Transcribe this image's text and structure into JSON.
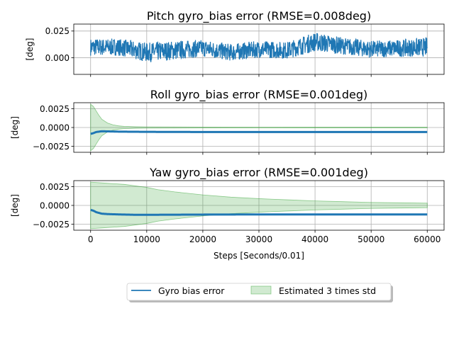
{
  "chart_data": [
    {
      "type": "line",
      "title": "Pitch gyro_bias error (RMSE=0.008deg)",
      "xlabel": "",
      "ylabel": "[deg]",
      "xlim": [
        -3000,
        63000
      ],
      "ylim": [
        -0.0155,
        0.0315
      ],
      "xticks": [
        0,
        10000,
        20000,
        30000,
        40000,
        50000,
        60000
      ],
      "yticks": [
        0.0,
        0.025
      ],
      "ytick_labels": [
        "0.000",
        "0.025"
      ],
      "grid": true,
      "series": [
        {
          "name": "Gyro bias error",
          "color": "#1f77b4",
          "style": "noisy band",
          "x": [
            0,
            5000,
            10000,
            15000,
            20000,
            25000,
            30000,
            35000,
            40000,
            45000,
            50000,
            55000,
            60000
          ],
          "mean": [
            0.01,
            0.01,
            0.005,
            0.007,
            0.009,
            0.005,
            0.008,
            0.007,
            0.015,
            0.011,
            0.008,
            0.009,
            0.01
          ],
          "spread": [
            0.008,
            0.008,
            0.009,
            0.009,
            0.008,
            0.008,
            0.008,
            0.008,
            0.009,
            0.008,
            0.008,
            0.008,
            0.009
          ]
        }
      ],
      "fill": null
    },
    {
      "type": "line",
      "title": "Roll gyro_bias error (RMSE=0.001deg)",
      "xlabel": "",
      "ylabel": "[deg]",
      "xlim": [
        -3000,
        63000
      ],
      "ylim": [
        -0.0033,
        0.0033
      ],
      "xticks": [
        0,
        10000,
        20000,
        30000,
        40000,
        50000,
        60000
      ],
      "yticks": [
        -0.0025,
        0.0,
        0.0025
      ],
      "ytick_labels": [
        "−0.0025",
        "0.0000",
        "0.0025"
      ],
      "grid": true,
      "series": [
        {
          "name": "Gyro bias error",
          "color": "#1f77b4",
          "x": [
            0,
            500,
            1000,
            2000,
            3000,
            5000,
            10000,
            20000,
            30000,
            40000,
            50000,
            60000
          ],
          "y": [
            -0.00085,
            -0.00075,
            -0.0006,
            -0.0005,
            -0.00052,
            -0.00055,
            -0.00058,
            -0.0006,
            -0.0006,
            -0.0006,
            -0.0006,
            -0.0006
          ]
        }
      ],
      "fill": {
        "name": "Estimated 3 times std",
        "color": "#2ca02c",
        "x": [
          0,
          500,
          1000,
          1500,
          2000,
          3000,
          4000,
          5000,
          6000,
          8000,
          10000,
          20000,
          30000,
          40000,
          50000,
          60000
        ],
        "upper": [
          0.0031,
          0.0028,
          0.0022,
          0.0016,
          0.0011,
          0.0006,
          0.00035,
          0.00022,
          0.00015,
          0.0001,
          8e-05,
          6e-05,
          5e-05,
          4e-05,
          4e-05,
          4e-05
        ],
        "lower": [
          -0.0031,
          -0.0028,
          -0.0022,
          -0.0016,
          -0.0011,
          -0.0006,
          -0.00035,
          -0.00022,
          -0.00015,
          -0.0001,
          -8e-05,
          -6e-05,
          -5e-05,
          -4e-05,
          -4e-05,
          -4e-05
        ]
      }
    },
    {
      "type": "line",
      "title": "Yaw gyro_bias error (RMSE=0.001deg)",
      "xlabel": "Steps [Seconds/0.01]",
      "ylabel": "[deg]",
      "xlim": [
        -3000,
        63000
      ],
      "ylim": [
        -0.0033,
        0.0033
      ],
      "xticks": [
        0,
        10000,
        20000,
        30000,
        40000,
        50000,
        60000
      ],
      "yticks": [
        -0.0025,
        0.0,
        0.0025
      ],
      "ytick_labels": [
        "−0.0025",
        "0.0000",
        "0.0025"
      ],
      "xtick_labels": [
        "0",
        "10000",
        "20000",
        "30000",
        "40000",
        "50000",
        "60000"
      ],
      "grid": true,
      "series": [
        {
          "name": "Gyro bias error",
          "color": "#1f77b4",
          "x": [
            0,
            500,
            1000,
            2000,
            3000,
            5000,
            8000,
            10000,
            20000,
            30000,
            40000,
            50000,
            60000
          ],
          "y": [
            -0.0006,
            -0.0007,
            -0.0009,
            -0.0011,
            -0.00115,
            -0.0012,
            -0.00125,
            -0.00125,
            -0.00122,
            -0.0012,
            -0.0012,
            -0.0012,
            -0.0012
          ]
        }
      ],
      "fill": {
        "name": "Estimated 3 times std",
        "color": "#2ca02c",
        "x": [
          0,
          2000,
          4000,
          6000,
          8000,
          10000,
          12000,
          15000,
          20000,
          25000,
          30000,
          35000,
          40000,
          45000,
          50000,
          55000,
          60000
        ],
        "upper": [
          0.0031,
          0.003,
          0.0029,
          0.0028,
          0.0026,
          0.0024,
          0.0021,
          0.0018,
          0.0014,
          0.0011,
          0.0009,
          0.00075,
          0.0006,
          0.0005,
          0.0004,
          0.00035,
          0.0003
        ],
        "lower": [
          -0.0031,
          -0.003,
          -0.0029,
          -0.0028,
          -0.0026,
          -0.0024,
          -0.0021,
          -0.0018,
          -0.0014,
          -0.0011,
          -0.0009,
          -0.00075,
          -0.0006,
          -0.0005,
          -0.0004,
          -0.00035,
          -0.0003
        ]
      }
    }
  ],
  "legend": {
    "items": [
      {
        "label": "Gyro bias error",
        "kind": "line",
        "color": "#1f77b4"
      },
      {
        "label": "Estimated 3 times std",
        "kind": "patch",
        "color": "#2ca02c"
      }
    ],
    "placement": "bottom-center"
  }
}
